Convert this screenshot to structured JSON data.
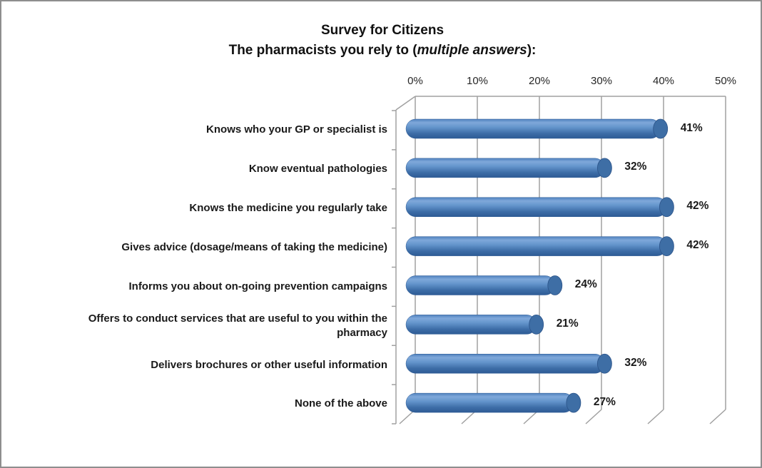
{
  "window": {
    "background": "#ffffff",
    "border_color": "#8e8e8e"
  },
  "title": {
    "line1": "Survey for Citizens",
    "line2_prefix": "The pharmacists you rely to (",
    "line2_italic": "multiple answers",
    "line2_suffix": "):"
  },
  "chart_data": {
    "type": "bar",
    "orientation": "horizontal",
    "style": "3d-cylinder",
    "title": "Survey for Citizens — The pharmacists you rely to (multiple answers):",
    "categories": [
      "Knows who your GP or specialist is",
      "Know eventual pathologies",
      "Knows the medicine you regularly take",
      "Gives advice (dosage/means of taking the medicine)",
      "Informs you about on-going prevention campaigns",
      "Offers to conduct services that are useful to you within the pharmacy",
      "Delivers brochures or other useful information",
      "None of the above"
    ],
    "values": [
      41,
      32,
      42,
      42,
      24,
      21,
      32,
      27
    ],
    "value_labels": [
      "41%",
      "32%",
      "42%",
      "42%",
      "24%",
      "21%",
      "32%",
      "27%"
    ],
    "x_axis": {
      "position": "top",
      "min": 0,
      "max": 50,
      "ticks": [
        {
          "label": "0%",
          "value": 0
        },
        {
          "label": "10%",
          "value": 10
        },
        {
          "label": "20%",
          "value": 20
        },
        {
          "label": "30%",
          "value": 30
        },
        {
          "label": "40%",
          "value": 40
        },
        {
          "label": "50%",
          "value": 50
        }
      ]
    },
    "grid": true,
    "legend": false,
    "colors": {
      "bar_main": "#4f81bd",
      "bar_highlight": "#7fa8da",
      "bar_mid": "#6495cc",
      "bar_shadow": "#2e5b95",
      "bar_cap": "#3e6ea5",
      "bar_cap_edge": "#2b5389",
      "gridline": "#a0a0a0",
      "text": "#1a1a1a"
    }
  }
}
